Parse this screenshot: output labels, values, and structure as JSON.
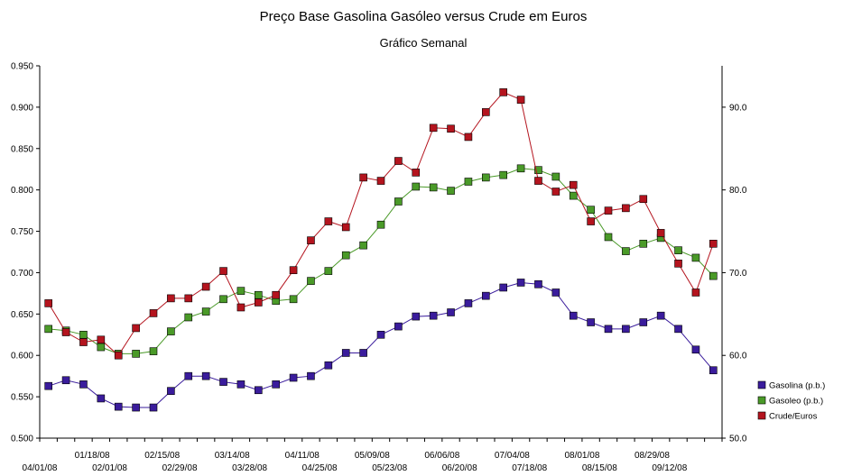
{
  "chart_data": {
    "type": "line",
    "title": "Preço Base Gasolina Gasóleo versus Crude em Euros",
    "subtitle": "Gráfico Semanal",
    "ylim_left": [
      0.5,
      0.95
    ],
    "yticks_left": [
      "0.500",
      "0.550",
      "0.600",
      "0.650",
      "0.700",
      "0.750",
      "0.800",
      "0.850",
      "0.900",
      "0.950"
    ],
    "ylim_right": [
      50,
      95
    ],
    "yticks_right": [
      "50.0",
      "60.0",
      "70.0",
      "80.0",
      "90.0"
    ],
    "grid": false,
    "legend_position": "right",
    "x_labels_upper": [
      {
        "index": 2,
        "label": "01/18/08"
      },
      {
        "index": 6,
        "label": "02/15/08"
      },
      {
        "index": 10,
        "label": "03/14/08"
      },
      {
        "index": 14,
        "label": "04/11/08"
      },
      {
        "index": 18,
        "label": "05/09/08"
      },
      {
        "index": 22,
        "label": "06/06/08"
      },
      {
        "index": 26,
        "label": "07/04/08"
      },
      {
        "index": 30,
        "label": "08/01/08"
      },
      {
        "index": 34,
        "label": "08/29/08"
      }
    ],
    "x_labels_lower": [
      {
        "index": 0,
        "label": "04/01/08"
      },
      {
        "index": 4,
        "label": "02/01/08"
      },
      {
        "index": 8,
        "label": "02/29/08"
      },
      {
        "index": 12,
        "label": "03/28/08"
      },
      {
        "index": 16,
        "label": "04/25/08"
      },
      {
        "index": 20,
        "label": "05/23/08"
      },
      {
        "index": 24,
        "label": "06/20/08"
      },
      {
        "index": 28,
        "label": "07/18/08"
      },
      {
        "index": 32,
        "label": "08/15/08"
      },
      {
        "index": 36,
        "label": "09/12/08"
      }
    ],
    "n_points": 39,
    "series": [
      {
        "name": "Gasolina (p.b.)",
        "axis": "left",
        "color": "#3a1c9c",
        "values": [
          0.563,
          0.57,
          0.565,
          0.548,
          0.538,
          0.537,
          0.537,
          0.557,
          0.575,
          0.575,
          0.568,
          0.565,
          0.558,
          0.565,
          0.573,
          0.575,
          0.588,
          0.603,
          0.603,
          0.625,
          0.635,
          0.647,
          0.648,
          0.652,
          0.663,
          0.672,
          0.682,
          0.688,
          0.686,
          0.676,
          0.648,
          0.64,
          0.632,
          0.632,
          0.64,
          0.648,
          0.632,
          0.607,
          0.582
        ]
      },
      {
        "name": "Gasoleo (p.b.)",
        "axis": "left",
        "color": "#4a9a28",
        "values": [
          0.632,
          0.63,
          0.625,
          0.61,
          0.602,
          0.602,
          0.605,
          0.629,
          0.646,
          0.653,
          0.668,
          0.678,
          0.673,
          0.666,
          0.668,
          0.69,
          0.702,
          0.721,
          0.733,
          0.758,
          0.786,
          0.804,
          0.803,
          0.799,
          0.81,
          0.815,
          0.818,
          0.826,
          0.824,
          0.816,
          0.793,
          0.776,
          0.743,
          0.726,
          0.735,
          0.742,
          0.727,
          0.718,
          0.696
        ]
      },
      {
        "name": "Crude/Euros",
        "axis": "right",
        "color": "#b4141e",
        "values": [
          66.3,
          62.8,
          61.6,
          61.9,
          60.0,
          63.3,
          65.1,
          66.9,
          66.9,
          68.3,
          70.2,
          65.8,
          66.4,
          67.3,
          70.3,
          73.9,
          76.2,
          75.5,
          81.5,
          81.1,
          83.5,
          82.1,
          87.5,
          87.4,
          86.4,
          89.4,
          91.8,
          90.9,
          81.1,
          79.8,
          80.6,
          76.2,
          77.5,
          77.8,
          78.9,
          74.8,
          71.1,
          67.6,
          73.5
        ]
      }
    ]
  }
}
